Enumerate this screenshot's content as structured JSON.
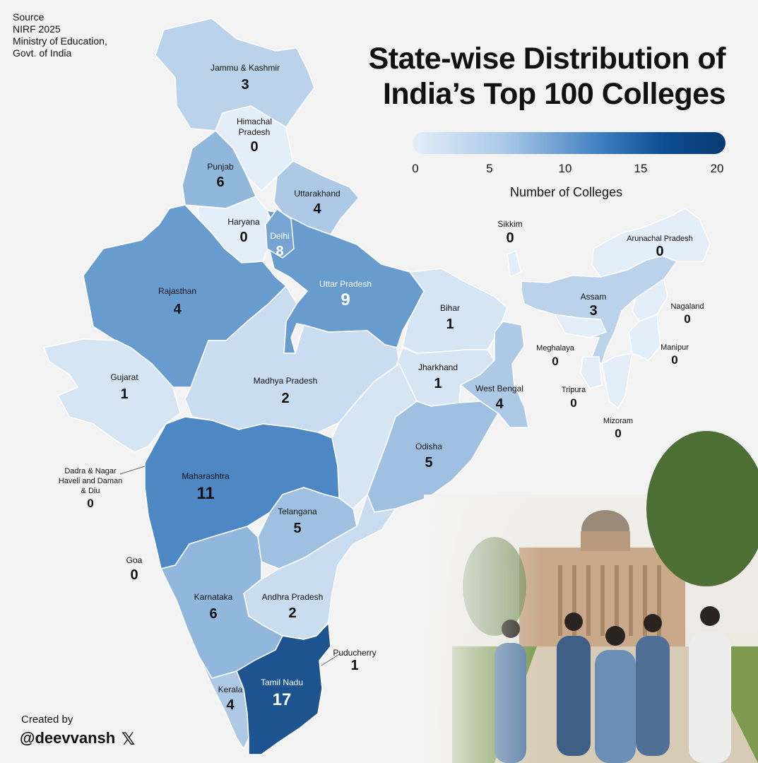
{
  "source": [
    "Source",
    "NIRF 2025",
    "Ministry of Education,",
    "Govt. of India"
  ],
  "title_lines": [
    "State-wise Distribution of",
    "India’s Top 100 Colleges"
  ],
  "legend": {
    "ticks": [
      "0",
      "5",
      "10",
      "15",
      "20"
    ],
    "title": "Number of Colleges",
    "min": 0,
    "max": 20
  },
  "credit": {
    "label": "Created by",
    "handle": "@deevvansh",
    "icon": "x-logo-icon"
  },
  "colors": {
    "low": "#e4eef9",
    "high": "#083a73"
  },
  "states": [
    {
      "name": "Jammu & Kashmir",
      "value": "3"
    },
    {
      "name": "Himachal Pradesh",
      "value": "0"
    },
    {
      "name": "Punjab",
      "value": "6"
    },
    {
      "name": "Uttarakhand",
      "value": "4"
    },
    {
      "name": "Haryana",
      "value": "0"
    },
    {
      "name": "Delhi",
      "value": "8"
    },
    {
      "name": "Uttar Pradesh",
      "value": "9"
    },
    {
      "name": "Rajasthan",
      "value": "4"
    },
    {
      "name": "Gujarat",
      "value": "1"
    },
    {
      "name": "Madhya Pradesh",
      "value": "2"
    },
    {
      "name": "Bihar",
      "value": "1"
    },
    {
      "name": "Jharkhand",
      "value": "1"
    },
    {
      "name": "West Bengal",
      "value": "4"
    },
    {
      "name": "Odisha",
      "value": "5"
    },
    {
      "name": "Maharashtra",
      "value": "11"
    },
    {
      "name": "Telangana",
      "value": "5"
    },
    {
      "name": "Karnataka",
      "value": "6"
    },
    {
      "name": "Andhra Pradesh",
      "value": "2"
    },
    {
      "name": "Tamil Nadu",
      "value": "17"
    },
    {
      "name": "Kerala",
      "value": "4"
    },
    {
      "name": "Goa",
      "value": "0"
    },
    {
      "name": "Puducherry",
      "value": "1"
    },
    {
      "name": "Dadra & Nagar Haveli and Daman & Diu",
      "value": "0"
    },
    {
      "name": "Sikkim",
      "value": "0"
    },
    {
      "name": "Arunachal Pradesh",
      "value": "0"
    },
    {
      "name": "Assam",
      "value": "3"
    },
    {
      "name": "Nagaland",
      "value": "0"
    },
    {
      "name": "Meghalaya",
      "value": "0"
    },
    {
      "name": "Manipur",
      "value": "0"
    },
    {
      "name": "Tripura",
      "value": "0"
    },
    {
      "name": "Mizoram",
      "value": "0"
    }
  ]
}
